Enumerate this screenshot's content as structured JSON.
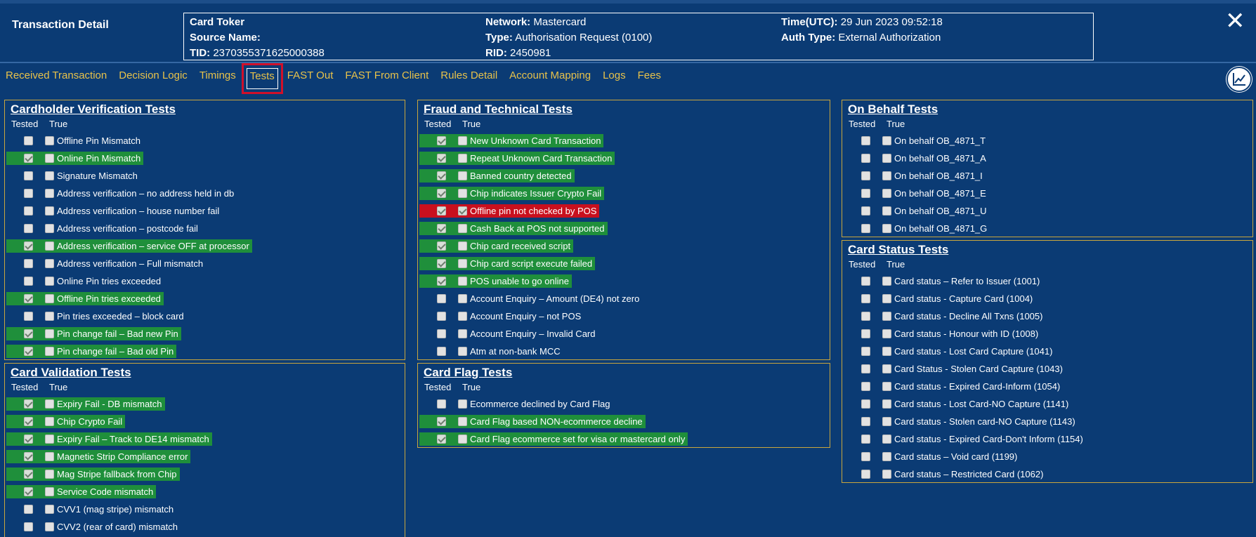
{
  "header": {
    "title": "Transaction Detail",
    "card_token_label": "Card Toker",
    "card_token_value": "",
    "source_name_label": "Source Name:",
    "source_name_value": "",
    "tid_label": "TID:",
    "tid_value": "2370355371625000388",
    "network_label": "Network:",
    "network_value": "Mastercard",
    "type_label": "Type:",
    "type_value": "Authorisation Request (0100)",
    "rid_label": "RID:",
    "rid_value": "2450981",
    "time_label": "Time(UTC):",
    "time_value": "29 Jun 2023 09:52:18",
    "auth_type_label": "Auth Type:",
    "auth_type_value": "External Authorization",
    "close_icon": "✕"
  },
  "tabs": [
    {
      "label": "Received Transaction"
    },
    {
      "label": "Decision Logic"
    },
    {
      "label": "Timings"
    },
    {
      "label": "Tests",
      "active": true
    },
    {
      "label": "FAST Out"
    },
    {
      "label": "FAST From Client"
    },
    {
      "label": "Rules Detail"
    },
    {
      "label": "Account Mapping"
    },
    {
      "label": "Logs"
    },
    {
      "label": "Fees"
    }
  ],
  "chart_button_icon": "line-chart-icon",
  "column_headers": {
    "tested": "Tested",
    "true": "True"
  },
  "panels": [
    {
      "id": "cardholder",
      "title": "Cardholder Verification Tests",
      "items": [
        {
          "label": "Offline Pin Mismatch",
          "tested": false,
          "true": false,
          "status": "none"
        },
        {
          "label": "Online Pin Mismatch",
          "tested": true,
          "true": false,
          "status": "green"
        },
        {
          "label": "Signature Mismatch",
          "tested": false,
          "true": false,
          "status": "none"
        },
        {
          "label": "Address verification – no address held in db",
          "tested": false,
          "true": false,
          "status": "none"
        },
        {
          "label": "Address verification – house number fail",
          "tested": false,
          "true": false,
          "status": "none"
        },
        {
          "label": "Address verification – postcode fail",
          "tested": false,
          "true": false,
          "status": "none"
        },
        {
          "label": "Address verification – service OFF at processor",
          "tested": true,
          "true": false,
          "status": "green"
        },
        {
          "label": "Address verification – Full mismatch",
          "tested": false,
          "true": false,
          "status": "none"
        },
        {
          "label": "Online Pin tries exceeded",
          "tested": false,
          "true": false,
          "status": "none"
        },
        {
          "label": "Offline Pin tries exceeded",
          "tested": true,
          "true": false,
          "status": "green"
        },
        {
          "label": "Pin tries exceeded – block card",
          "tested": false,
          "true": false,
          "status": "none"
        },
        {
          "label": "Pin change fail – Bad new Pin",
          "tested": true,
          "true": false,
          "status": "green"
        },
        {
          "label": "Pin change fail – Bad old Pin",
          "tested": true,
          "true": false,
          "status": "green"
        }
      ]
    },
    {
      "id": "cardvalidation",
      "title": "Card Validation Tests",
      "items": [
        {
          "label": "Expiry Fail - DB mismatch",
          "tested": true,
          "true": false,
          "status": "green"
        },
        {
          "label": "Chip Crypto Fail",
          "tested": true,
          "true": false,
          "status": "green"
        },
        {
          "label": "Expiry Fail – Track to DE14 mismatch",
          "tested": true,
          "true": false,
          "status": "green"
        },
        {
          "label": "Magnetic Strip Compliance error",
          "tested": true,
          "true": false,
          "status": "green"
        },
        {
          "label": "Mag Stripe fallback from Chip",
          "tested": true,
          "true": false,
          "status": "green"
        },
        {
          "label": "Service Code mismatch",
          "tested": true,
          "true": false,
          "status": "green"
        },
        {
          "label": "CVV1 (mag stripe) mismatch",
          "tested": false,
          "true": false,
          "status": "none"
        },
        {
          "label": "CVV2 (rear of card) mismatch",
          "tested": false,
          "true": false,
          "status": "none"
        }
      ]
    },
    {
      "id": "fraud",
      "title": "Fraud and Technical Tests",
      "items": [
        {
          "label": "New Unknown Card Transaction",
          "tested": true,
          "true": false,
          "status": "green"
        },
        {
          "label": "Repeat Unknown Card Transaction",
          "tested": true,
          "true": false,
          "status": "green"
        },
        {
          "label": "Banned country detected",
          "tested": true,
          "true": false,
          "status": "green"
        },
        {
          "label": "Chip indicates Issuer Crypto Fail",
          "tested": true,
          "true": false,
          "status": "green"
        },
        {
          "label": "Offline pin not checked by POS",
          "tested": true,
          "true": true,
          "status": "red"
        },
        {
          "label": "Cash Back at POS not supported",
          "tested": true,
          "true": false,
          "status": "green"
        },
        {
          "label": "Chip card received script",
          "tested": true,
          "true": false,
          "status": "green"
        },
        {
          "label": "Chip card script execute failed",
          "tested": true,
          "true": false,
          "status": "green"
        },
        {
          "label": "POS unable to go online",
          "tested": true,
          "true": false,
          "status": "green"
        },
        {
          "label": "Account Enquiry – Amount (DE4) not zero",
          "tested": false,
          "true": false,
          "status": "none"
        },
        {
          "label": "Account Enquiry – not POS",
          "tested": false,
          "true": false,
          "status": "none"
        },
        {
          "label": "Account Enquiry – Invalid Card",
          "tested": false,
          "true": false,
          "status": "none"
        },
        {
          "label": "Atm at non-bank MCC",
          "tested": false,
          "true": false,
          "status": "none"
        }
      ]
    },
    {
      "id": "cardflag",
      "title": "Card Flag Tests",
      "items": [
        {
          "label": "Ecommerce declined by Card Flag",
          "tested": false,
          "true": false,
          "status": "none"
        },
        {
          "label": "Card Flag based NON-ecommerce decline",
          "tested": true,
          "true": false,
          "status": "green"
        },
        {
          "label": "Card Flag ecommerce set for visa or mastercard only",
          "tested": true,
          "true": false,
          "status": "green"
        }
      ]
    },
    {
      "id": "onbehalf",
      "title": "On Behalf Tests",
      "items": [
        {
          "label": "On behalf OB_4871_T",
          "tested": false,
          "true": false,
          "status": "none"
        },
        {
          "label": "On behalf OB_4871_A",
          "tested": false,
          "true": false,
          "status": "none"
        },
        {
          "label": "On behalf OB_4871_I",
          "tested": false,
          "true": false,
          "status": "none"
        },
        {
          "label": "On behalf OB_4871_E",
          "tested": false,
          "true": false,
          "status": "none"
        },
        {
          "label": "On behalf OB_4871_U",
          "tested": false,
          "true": false,
          "status": "none"
        },
        {
          "label": "On behalf OB_4871_G",
          "tested": false,
          "true": false,
          "status": "none"
        }
      ]
    },
    {
      "id": "cardstatus",
      "title": "Card Status Tests",
      "items": [
        {
          "label": "Card status – Refer to Issuer (1001)",
          "tested": false,
          "true": false,
          "status": "none"
        },
        {
          "label": "Card status - Capture Card (1004)",
          "tested": false,
          "true": false,
          "status": "none"
        },
        {
          "label": "Card status - Decline All Txns (1005)",
          "tested": false,
          "true": false,
          "status": "none"
        },
        {
          "label": "Card status - Honour with ID (1008)",
          "tested": false,
          "true": false,
          "status": "none"
        },
        {
          "label": "Card status - Lost Card Capture (1041)",
          "tested": false,
          "true": false,
          "status": "none"
        },
        {
          "label": "Card Status - Stolen Card Capture (1043)",
          "tested": false,
          "true": false,
          "status": "none"
        },
        {
          "label": "Card status - Expired Card-Inform (1054)",
          "tested": false,
          "true": false,
          "status": "none"
        },
        {
          "label": "Card status - Lost Card-NO Capture (1141)",
          "tested": false,
          "true": false,
          "status": "none"
        },
        {
          "label": "Card status - Stolen card-NO Capture (1143)",
          "tested": false,
          "true": false,
          "status": "none"
        },
        {
          "label": "Card status - Expired Card-Don't Inform (1154)",
          "tested": false,
          "true": false,
          "status": "none"
        },
        {
          "label": "Card status – Void card (1199)",
          "tested": false,
          "true": false,
          "status": "none"
        },
        {
          "label": "Card status – Restricted Card (1062)",
          "tested": false,
          "true": false,
          "status": "none"
        }
      ]
    }
  ],
  "colors": {
    "background": "#0b3b74",
    "accent": "#e8c24a",
    "pass": "#1f8f3b",
    "fail": "#c8101e",
    "panel_border": "#c9a63d"
  }
}
